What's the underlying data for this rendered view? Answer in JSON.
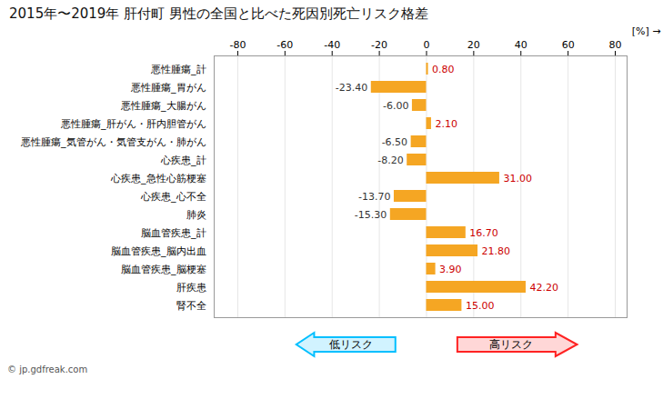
{
  "chart_data": {
    "type": "bar",
    "orientation": "horizontal",
    "title": "2015年〜2019年 肝付町 男性の全国と比べた死因別死亡リスク格差",
    "xlabel": "[%]",
    "categories": [
      "悪性腫瘍_計",
      "悪性腫瘍_胃がん",
      "悪性腫瘍_大腸がん",
      "悪性腫瘍_肝がん・肝内胆管がん",
      "悪性腫瘍_気管がん・気管支がん・肺がん",
      "心疾患_計",
      "心疾患_急性心筋梗塞",
      "心疾患_心不全",
      "肺炎",
      "脳血管疾患_計",
      "脳血管疾患_脳内出血",
      "脳血管疾患_脳梗塞",
      "肝疾患",
      "腎不全"
    ],
    "values": [
      0.8,
      -23.4,
      -6.0,
      2.1,
      -6.5,
      -8.2,
      31.0,
      -13.7,
      -15.3,
      16.7,
      21.8,
      3.9,
      42.2,
      15.0
    ],
    "value_labels": [
      "0.80",
      "-23.40",
      "-6.00",
      "2.10",
      "-6.50",
      "-8.20",
      "31.00",
      "-13.70",
      "-15.30",
      "16.70",
      "21.80",
      "3.90",
      "42.20",
      "15.00"
    ],
    "color": "#F5A623",
    "xlim": [
      -90,
      85
    ],
    "xticks": [
      -80,
      -60,
      -40,
      -20,
      0,
      20,
      40,
      60,
      80
    ],
    "grid": true,
    "data_labels": true,
    "annotations": [
      {
        "text": "低リスク",
        "color": "#00BFFF"
      },
      {
        "text": "高リスク",
        "color": "#FF2222"
      }
    ],
    "caption": "© jp.gdfreak.com"
  }
}
